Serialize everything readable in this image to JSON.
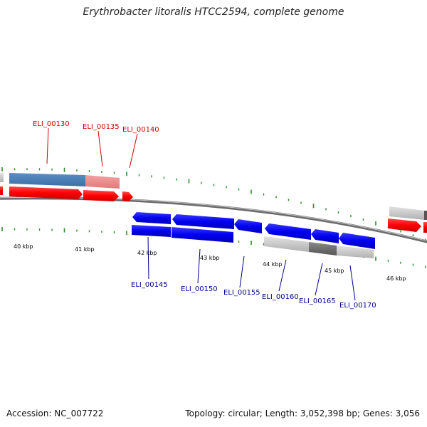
{
  "title": "Erythrobacter litoralis HTCC2594, complete genome",
  "footer": {
    "accession": "Accession: NC_007722",
    "topology": "Topology: circular; Length: 3,052,398 bp; Genes: 3,056"
  },
  "ticks": [
    "40 kbp",
    "41 kbp",
    "42 kbp",
    "43 kbp",
    "44 kbp",
    "45 kbp",
    "46 kbp"
  ],
  "genes_top": [
    "ELI_00130",
    "ELI_00135",
    "ELI_00140"
  ],
  "genes_bottom": [
    "ELI_00145",
    "ELI_00150",
    "ELI_00155",
    "ELI_00160",
    "ELI_00165",
    "ELI_00170"
  ],
  "colors": {
    "forward": "#ff0000",
    "reverse": "#0000ee",
    "top_label": "#cc0000",
    "bottom_label": "#00008b",
    "tick": "#2e8b2e",
    "backbone": "#707070"
  }
}
